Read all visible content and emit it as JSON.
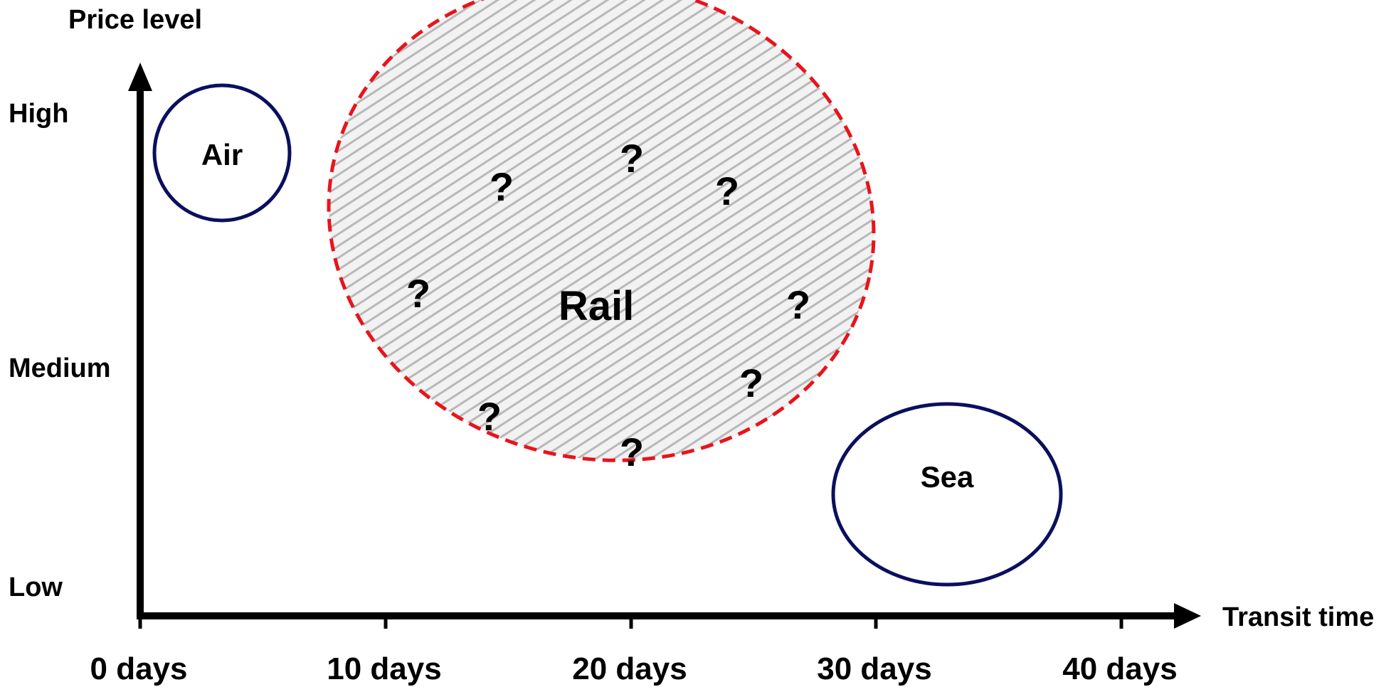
{
  "diagram": {
    "y_axis_title": "Price level",
    "x_axis_title": "Transit time",
    "y_ticks": [
      "High",
      "Medium",
      "Low"
    ],
    "x_ticks": [
      "0 days",
      "10 days",
      "20 days",
      "30 days",
      "40 days"
    ],
    "modes": {
      "air": {
        "label": "Air",
        "border_color": "#0b0f5e"
      },
      "rail": {
        "label": "Rail",
        "border_color": "#e8141c",
        "fill": "hatched-gray"
      },
      "sea": {
        "label": "Sea",
        "border_color": "#0b0f5e"
      }
    },
    "question_mark": "?",
    "axis_color": "#000000"
  }
}
